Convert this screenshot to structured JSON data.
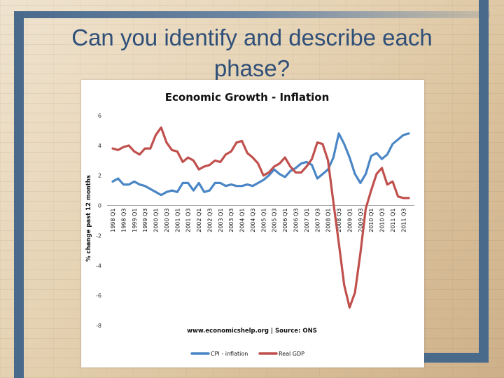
{
  "slide": {
    "title": "Can you identify and describe each phase?"
  },
  "colors": {
    "cpi": "#4a86c5",
    "gdp": "#c0504d",
    "frame": "#4a6a8c",
    "title_text": "#2f4f78"
  },
  "chart_data": {
    "type": "line",
    "title": "Economic Growth - Inflation",
    "ylabel": "% change past 12 months",
    "xlabel": "",
    "source_note": "www.economicshelp.org | Source: ONS",
    "ylim": [
      -8,
      6
    ],
    "yticks": [
      6,
      4,
      2,
      0,
      -2,
      -4,
      -6,
      -8
    ],
    "legend_position": "bottom",
    "tick_labels": [
      "1998 Q1",
      "1998 Q3",
      "1999 Q1",
      "1999 Q3",
      "2000 Q1",
      "2000 Q3",
      "2001 Q1",
      "2001 Q3",
      "2002 Q1",
      "2002 Q3",
      "2003 Q1",
      "2003 Q3",
      "2004 Q1",
      "2004 Q3",
      "2005 Q1",
      "2005 Q3",
      "2006 Q1",
      "2006 Q3",
      "2007 Q1",
      "2007 Q3",
      "2008 Q1",
      "2008 Q3",
      "2009 Q1",
      "2009 Q3",
      "2010 Q1",
      "2010 Q3",
      "2011 Q1",
      "2011 Q3"
    ],
    "x": [
      "1998 Q1",
      "1998 Q2",
      "1998 Q3",
      "1998 Q4",
      "1999 Q1",
      "1999 Q2",
      "1999 Q3",
      "1999 Q4",
      "2000 Q1",
      "2000 Q2",
      "2000 Q3",
      "2000 Q4",
      "2001 Q1",
      "2001 Q2",
      "2001 Q3",
      "2001 Q4",
      "2002 Q1",
      "2002 Q2",
      "2002 Q3",
      "2002 Q4",
      "2003 Q1",
      "2003 Q2",
      "2003 Q3",
      "2003 Q4",
      "2004 Q1",
      "2004 Q2",
      "2004 Q3",
      "2004 Q4",
      "2005 Q1",
      "2005 Q2",
      "2005 Q3",
      "2005 Q4",
      "2006 Q1",
      "2006 Q2",
      "2006 Q3",
      "2006 Q4",
      "2007 Q1",
      "2007 Q2",
      "2007 Q3",
      "2007 Q4",
      "2008 Q1",
      "2008 Q2",
      "2008 Q3",
      "2008 Q4",
      "2009 Q1",
      "2009 Q2",
      "2009 Q3",
      "2009 Q4",
      "2010 Q1",
      "2010 Q2",
      "2010 Q3",
      "2010 Q4",
      "2011 Q1",
      "2011 Q2",
      "2011 Q3",
      "2011 Q4"
    ],
    "series": [
      {
        "name": "CPI - inflation",
        "color": "#4a86c5",
        "values": [
          1.6,
          1.8,
          1.4,
          1.4,
          1.6,
          1.4,
          1.3,
          1.1,
          0.9,
          0.7,
          0.9,
          1.0,
          0.9,
          1.5,
          1.5,
          1.0,
          1.5,
          0.9,
          1.0,
          1.5,
          1.5,
          1.3,
          1.4,
          1.3,
          1.3,
          1.4,
          1.3,
          1.5,
          1.7,
          2.0,
          2.4,
          2.1,
          1.9,
          2.3,
          2.5,
          2.8,
          2.9,
          2.7,
          1.8,
          2.1,
          2.4,
          3.2,
          4.8,
          4.1,
          3.2,
          2.1,
          1.5,
          2.1,
          3.3,
          3.5,
          3.1,
          3.4,
          4.1,
          4.4,
          4.7,
          4.8
        ]
      },
      {
        "name": "Real GDP",
        "color": "#c0504d",
        "values": [
          3.8,
          3.7,
          3.9,
          4.0,
          3.6,
          3.4,
          3.8,
          3.8,
          4.7,
          5.2,
          4.2,
          3.7,
          3.6,
          2.9,
          3.2,
          3.0,
          2.4,
          2.6,
          2.7,
          3.0,
          2.9,
          3.4,
          3.6,
          4.2,
          4.3,
          3.5,
          3.2,
          2.8,
          2.0,
          2.2,
          2.6,
          2.8,
          3.2,
          2.6,
          2.2,
          2.2,
          2.6,
          3.1,
          4.2,
          4.1,
          3.0,
          0.2,
          -2.5,
          -5.3,
          -6.8,
          -5.8,
          -3.2,
          -0.2,
          1.0,
          2.1,
          2.5,
          1.4,
          1.6,
          0.6,
          0.5,
          0.5
        ]
      }
    ]
  }
}
